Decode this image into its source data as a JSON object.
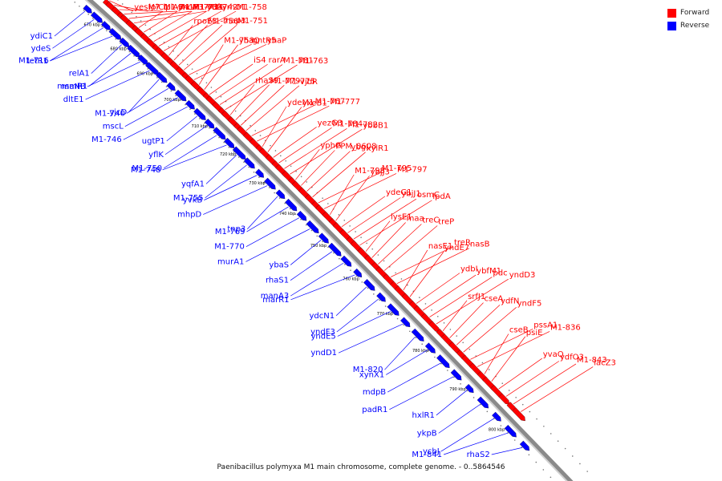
{
  "caption": "Paenibacillus polymyxa M1 main chromosome, complete genome. - 0..5864546",
  "legend": {
    "forward_label": "Forward",
    "reverse_label": "Reverse",
    "forward_color": "#ff0000",
    "reverse_color": "#0000ff"
  },
  "ticks": [
    "670 kbp",
    "680 kbp",
    "690 kbp",
    "700 kbp",
    "710 kbp",
    "720 kbp",
    "730 kbp",
    "740 kbp",
    "750 kbp",
    "760 kbp",
    "770 kbp",
    "780 kbp",
    "790 kbp",
    "800 kbp"
  ],
  "forward_genes": [
    "yesM7",
    "lplC1",
    "lplA3",
    "yncA",
    "M1-733",
    "ydfG",
    "M1-741",
    "M1-737",
    "M1-734",
    "M1-742",
    "yrhO1",
    "M1-758",
    "rpoE3",
    "M1-756",
    "map3",
    "M1-751",
    "gntR5",
    "yhaP",
    "M1-753",
    "yhaQ",
    "iS4",
    "rarA",
    "M1-781",
    "M1-763",
    "rhaS9",
    "M1-779",
    "M1-775",
    "vjbR",
    "M1-767",
    "M1-777",
    "ydeM1",
    "yxeB1",
    "yezG3",
    "M1-784",
    "M1-782",
    "ybbB1",
    "yphG",
    "PPM_0608",
    "ybgI",
    "xylR1",
    "M1-795",
    "M1-797",
    "M1-798",
    "ybjJ3",
    "ydeG1",
    "ybjJ1",
    "osmC",
    "lpdA",
    "lysE1",
    "maa",
    "treC",
    "treP",
    "treR",
    "nasB",
    "nasE1",
    "yndE7",
    "ydbI",
    "ybfM1",
    "pdc",
    "yndD3",
    "srfJ1",
    "cseA",
    "ydfN",
    "yndF5",
    "pssA1",
    "M1-836",
    "cseB",
    "psiE",
    "yvaQ",
    "ydfO3",
    "M1-843",
    "lacZ3"
  ],
  "reverse_genes": [
    "ydiC1",
    "ydeS",
    "M1-716",
    "tetR1",
    "relA1",
    "msmR1",
    "maNB",
    "dltE1",
    "yjcD",
    "M1-740",
    "mscL",
    "M1-746",
    "ugtP1",
    "yflK",
    "M1-750",
    "M1-748",
    "yqfA1",
    "M1-755",
    "yvkB",
    "mhpD",
    "tnp3",
    "M1-769",
    "M1-770",
    "murA1",
    "ybaS",
    "rhaS1",
    "manA3",
    "marR1",
    "ydcN1",
    "yndF3",
    "yndE5",
    "yndD1",
    "M1-820",
    "xynX1",
    "mdpB",
    "padR1",
    "hxlR1",
    "ykpB",
    "ycbJ",
    "M1-841",
    "rhaS2"
  ]
}
